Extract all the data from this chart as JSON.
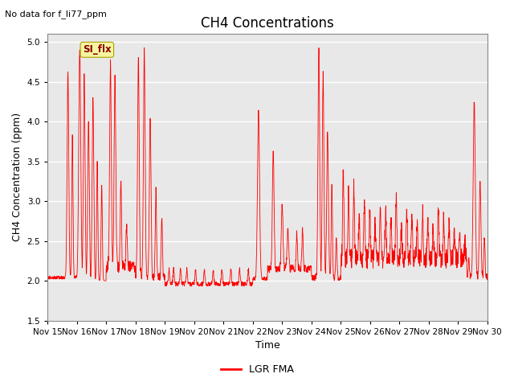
{
  "title": "CH4 Concentrations",
  "subtitle": "No data for f_li77_ppm",
  "xlabel": "Time",
  "ylabel": "CH4 Concentration (ppm)",
  "ylim": [
    1.5,
    5.1
  ],
  "yticks": [
    1.5,
    2.0,
    2.5,
    3.0,
    3.5,
    4.0,
    4.5,
    5.0
  ],
  "line_color": "red",
  "line_width": 0.6,
  "bg_color": "#ffffff",
  "plot_bg_color": "#e8e8e8",
  "legend_label": "LGR FMA",
  "legend_line_color": "red",
  "annotation_label": "SI_flx",
  "grid_color": "white",
  "grid_alpha": 1.0,
  "title_fontsize": 12,
  "axis_label_fontsize": 9,
  "tick_fontsize": 7.5,
  "xtick_labels": [
    "Nov 15",
    "Nov 16",
    "Nov 17",
    "Nov 18",
    "Nov 19",
    "Nov 20",
    "Nov 21",
    "Nov 22",
    "Nov 23",
    "Nov 24",
    "Nov 25",
    "Nov 26",
    "Nov 27",
    "Nov 28",
    "Nov 29",
    "Nov 30"
  ]
}
